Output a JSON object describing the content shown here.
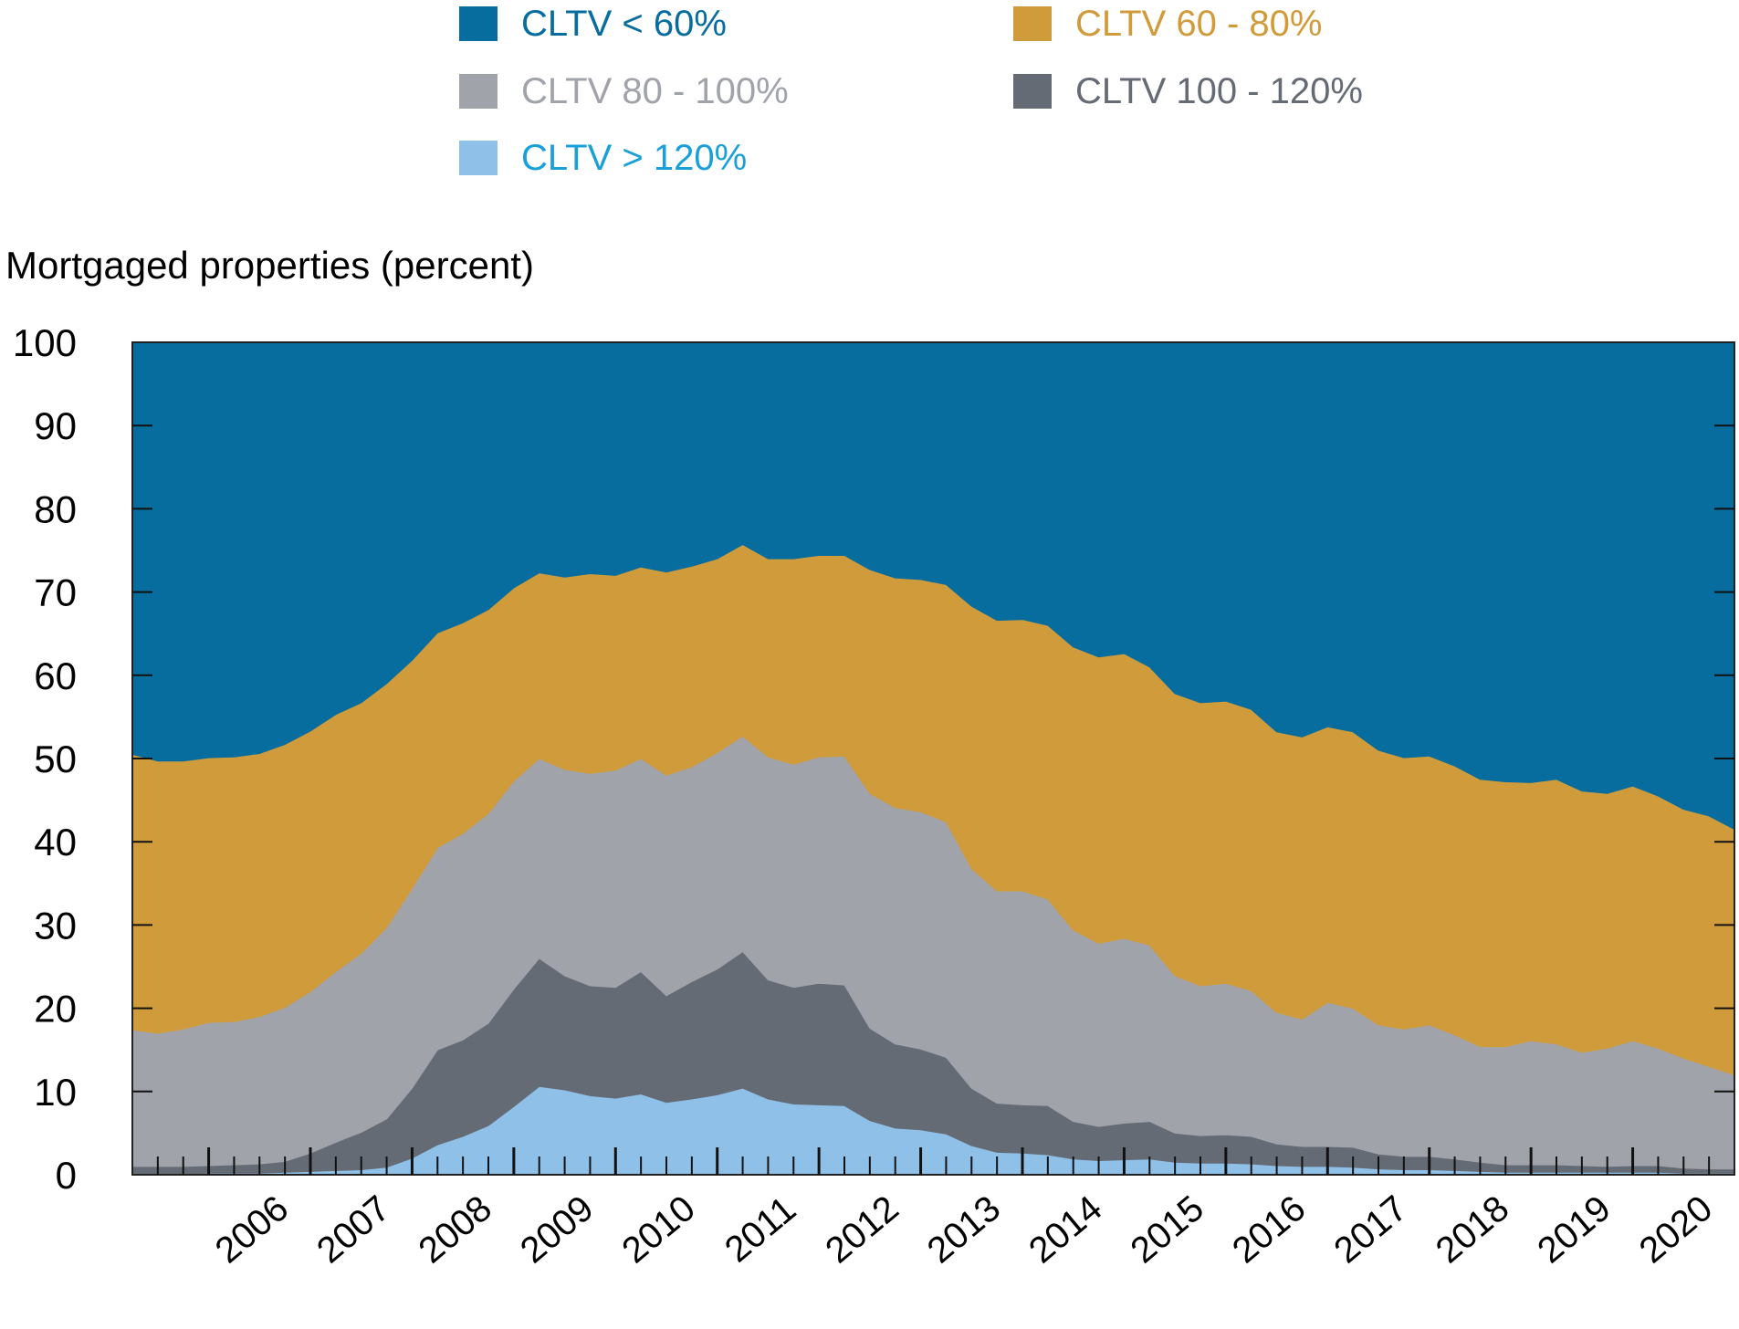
{
  "chart_data": {
    "type": "area",
    "stacked": true,
    "ylabel": "Mortgaged properties (percent)",
    "ylim": [
      0,
      100
    ],
    "yticks": [
      0,
      10,
      20,
      30,
      40,
      50,
      60,
      70,
      80,
      90,
      100
    ],
    "xlim": [
      2005.25,
      2021.0
    ],
    "xticks": [
      2006,
      2007,
      2008,
      2009,
      2010,
      2011,
      2012,
      2013,
      2014,
      2015,
      2016,
      2017,
      2018,
      2019,
      2020
    ],
    "xtick_labels": [
      "2006",
      "2007",
      "2008",
      "2009",
      "2010",
      "2011",
      "2012",
      "2013",
      "2014",
      "2015",
      "2016",
      "2017",
      "2018",
      "2019",
      "2020"
    ],
    "legend_position": "top",
    "x": [
      2005.25,
      2005.5,
      2005.75,
      2006.0,
      2006.25,
      2006.5,
      2006.75,
      2007.0,
      2007.25,
      2007.5,
      2007.75,
      2008.0,
      2008.25,
      2008.5,
      2008.75,
      2009.0,
      2009.25,
      2009.5,
      2009.75,
      2010.0,
      2010.25,
      2010.5,
      2010.75,
      2011.0,
      2011.25,
      2011.5,
      2011.75,
      2012.0,
      2012.25,
      2012.5,
      2012.75,
      2013.0,
      2013.25,
      2013.5,
      2013.75,
      2014.0,
      2014.25,
      2014.5,
      2014.75,
      2015.0,
      2015.25,
      2015.5,
      2015.75,
      2016.0,
      2016.25,
      2016.5,
      2016.75,
      2017.0,
      2017.25,
      2017.5,
      2017.75,
      2018.0,
      2018.25,
      2018.5,
      2018.75,
      2019.0,
      2019.25,
      2019.5,
      2019.75,
      2020.0,
      2020.25,
      2020.5,
      2020.75,
      2021.0
    ],
    "series": [
      {
        "name": "CLTV > 120%",
        "color": "#8fc1e8",
        "values": [
          0.1,
          0.1,
          0.1,
          0.2,
          0.2,
          0.2,
          0.3,
          0.4,
          0.5,
          0.6,
          0.9,
          2.0,
          3.6,
          4.6,
          5.9,
          8.2,
          10.6,
          10.2,
          9.5,
          9.2,
          9.7,
          8.7,
          9.1,
          9.6,
          10.4,
          9.1,
          8.5,
          8.4,
          8.3,
          6.5,
          5.6,
          5.4,
          4.9,
          3.5,
          2.7,
          2.6,
          2.4,
          1.9,
          1.7,
          1.8,
          1.9,
          1.5,
          1.4,
          1.4,
          1.3,
          1.1,
          1.0,
          1.0,
          0.9,
          0.7,
          0.6,
          0.6,
          0.5,
          0.4,
          0.3,
          0.3,
          0.3,
          0.3,
          0.3,
          0.3,
          0.3,
          0.2,
          0.2,
          0.2
        ]
      },
      {
        "name": "CLTV 100 - 120%",
        "color": "#656b74",
        "values": [
          0.9,
          0.9,
          0.9,
          0.9,
          1.0,
          1.1,
          1.3,
          2.2,
          3.4,
          4.5,
          5.8,
          8.4,
          11.4,
          11.6,
          12.3,
          14.1,
          15.4,
          13.7,
          13.2,
          13.3,
          14.7,
          12.8,
          14.1,
          15.1,
          16.4,
          14.3,
          14.0,
          14.6,
          14.5,
          11.1,
          10.1,
          9.7,
          9.2,
          6.9,
          5.9,
          5.8,
          5.9,
          4.5,
          4.1,
          4.4,
          4.5,
          3.5,
          3.3,
          3.4,
          3.3,
          2.6,
          2.4,
          2.4,
          2.4,
          1.8,
          1.6,
          1.6,
          1.4,
          1.1,
          0.9,
          0.9,
          0.9,
          0.8,
          0.7,
          0.8,
          0.8,
          0.6,
          0.5,
          0.5
        ]
      },
      {
        "name": "CLTV 80 - 100%",
        "color": "#a1a3aa",
        "values": [
          16.4,
          16.0,
          16.5,
          17.2,
          17.2,
          17.7,
          18.5,
          19.4,
          20.5,
          21.5,
          23.0,
          24.0,
          24.3,
          24.8,
          25.2,
          25.0,
          24.0,
          24.8,
          25.5,
          26.1,
          25.6,
          26.5,
          25.8,
          26.0,
          25.9,
          26.8,
          26.8,
          27.2,
          27.5,
          28.2,
          28.4,
          28.5,
          28.3,
          26.4,
          25.5,
          25.7,
          24.8,
          23.0,
          22.0,
          22.2,
          21.2,
          18.9,
          18.0,
          18.2,
          17.5,
          15.8,
          15.3,
          17.3,
          16.7,
          15.5,
          15.3,
          15.8,
          14.9,
          13.9,
          14.2,
          14.9,
          14.5,
          13.6,
          14.2,
          15.0,
          14.1,
          13.2,
          12.3,
          11.3
        ]
      },
      {
        "name": "CLTV 60 - 80%",
        "color": "#d09b3b",
        "values": [
          33.1,
          32.7,
          32.2,
          31.8,
          31.8,
          31.6,
          31.6,
          31.3,
          30.9,
          30.1,
          29.3,
          27.4,
          25.8,
          25.3,
          24.5,
          23.2,
          22.3,
          23.1,
          24.0,
          23.4,
          23.0,
          24.4,
          24.1,
          23.3,
          23.0,
          23.8,
          24.7,
          24.2,
          24.1,
          26.9,
          27.6,
          27.9,
          28.5,
          31.5,
          32.5,
          32.6,
          32.9,
          34.0,
          34.4,
          34.2,
          33.4,
          33.9,
          34.0,
          33.9,
          33.8,
          33.7,
          33.9,
          33.1,
          33.2,
          33.0,
          32.6,
          32.3,
          32.3,
          32.1,
          31.8,
          31.0,
          31.8,
          31.4,
          30.6,
          30.6,
          30.3,
          29.9,
          30.1,
          29.5
        ]
      },
      {
        "name": "CLTV < 60%",
        "color": "#066d9e",
        "values": [
          49.5,
          50.3,
          50.3,
          49.9,
          49.8,
          49.4,
          48.3,
          46.7,
          44.7,
          43.3,
          41.0,
          38.2,
          34.9,
          33.7,
          32.1,
          29.5,
          27.7,
          28.2,
          27.8,
          28.0,
          27.0,
          27.6,
          26.9,
          26.0,
          24.3,
          26.0,
          26.0,
          25.6,
          25.6,
          27.3,
          28.3,
          28.5,
          29.1,
          31.7,
          33.4,
          33.3,
          34.0,
          36.6,
          37.8,
          37.4,
          39.0,
          42.2,
          43.3,
          43.1,
          44.1,
          46.8,
          47.4,
          46.2,
          46.8,
          49.0,
          49.9,
          49.7,
          50.9,
          52.5,
          52.8,
          52.9,
          52.5,
          53.9,
          54.2,
          53.3,
          54.5,
          56.1,
          56.9,
          58.5
        ]
      }
    ],
    "legend": [
      {
        "label": "CLTV < 60%",
        "color": "#066d9e"
      },
      {
        "label": "CLTV 60 - 80%",
        "color": "#d09b3b"
      },
      {
        "label": "CLTV 80 - 100%",
        "color": "#a1a3aa"
      },
      {
        "label": "CLTV 100 - 120%",
        "color": "#656b74"
      },
      {
        "label": "CLTV > 120%",
        "color": "#1aa0d8",
        "swatch_color": "#8fc1e8"
      }
    ]
  }
}
